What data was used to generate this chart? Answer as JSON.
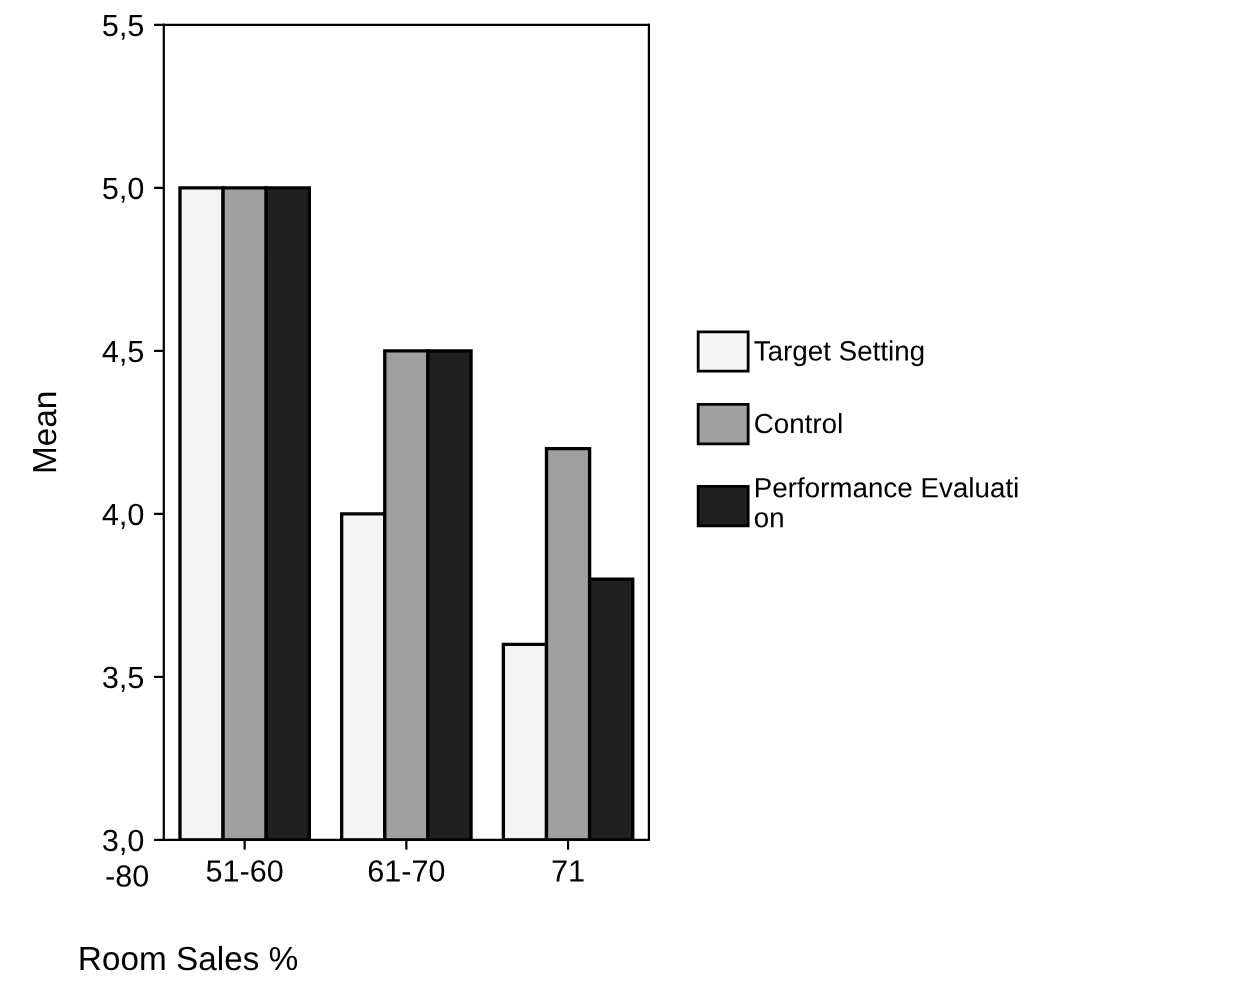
{
  "chart_data": {
    "type": "bar",
    "xlabel": "Room Sales %",
    "ylabel": "Mean",
    "categories": [
      "51-60",
      "61-70",
      "71"
    ],
    "series": [
      {
        "name": "Target Setting",
        "color": "#f4f4f4",
        "values": [
          5.0,
          4.0,
          3.6
        ]
      },
      {
        "name": "Control",
        "color": "#a0a0a0",
        "values": [
          5.0,
          4.5,
          4.2
        ]
      },
      {
        "name": "Performance Evaluati\non",
        "color": "#202020",
        "values": [
          5.0,
          4.5,
          3.8
        ]
      }
    ],
    "ylim": [
      3.0,
      5.5
    ],
    "yticks": [
      {
        "value": 3.0,
        "label": "3,0"
      },
      {
        "value": 3.5,
        "label": "3,5"
      },
      {
        "value": 4.0,
        "label": "4,0"
      },
      {
        "value": 4.5,
        "label": "4,5"
      },
      {
        "value": 5.0,
        "label": "5,0"
      },
      {
        "value": 5.5,
        "label": "5,5"
      }
    ],
    "annotations": [
      "-80"
    ],
    "legend": "right",
    "grid": false
  }
}
